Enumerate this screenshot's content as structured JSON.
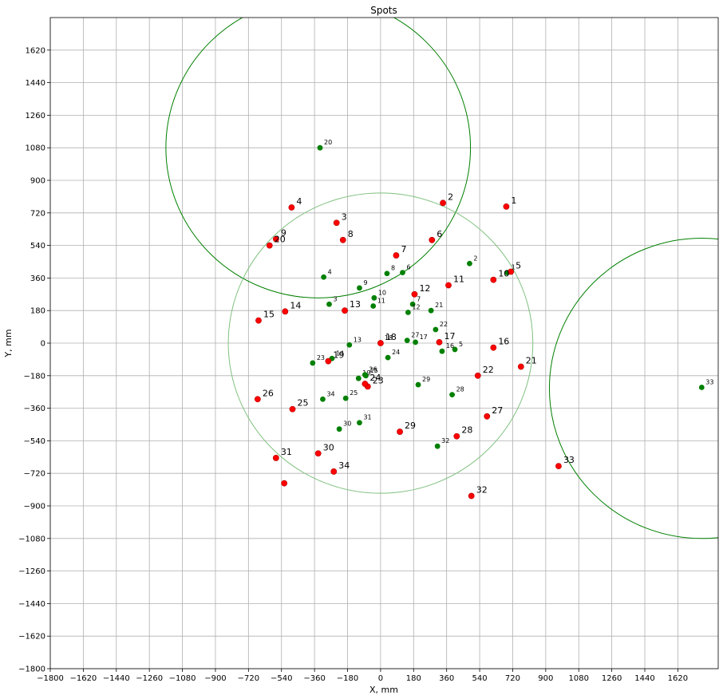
{
  "chart_data": {
    "type": "scatter",
    "title": "Spots",
    "xlabel": "X, mm",
    "ylabel": "Y, mm",
    "xlim": [
      -1800,
      1840
    ],
    "ylim": [
      -1800,
      1800
    ],
    "grid": true,
    "xticks": [
      "−1800",
      "−1620",
      "−1440",
      "−1260",
      "−1080",
      "−900",
      "−720",
      "−540",
      "−360",
      "−180",
      "0",
      "180",
      "360",
      "540",
      "720",
      "900",
      "1080",
      "1260",
      "1440",
      "1620"
    ],
    "xtick_values": [
      -1800,
      -1620,
      -1440,
      -1260,
      -1080,
      -900,
      -720,
      -540,
      -360,
      -180,
      0,
      180,
      360,
      540,
      720,
      900,
      1080,
      1260,
      1440,
      1620
    ],
    "yticks": [
      "−1800",
      "−1620",
      "−1440",
      "−1260",
      "−1080",
      "−900",
      "−720",
      "−540",
      "−360",
      "−180",
      "0",
      "180",
      "360",
      "540",
      "720",
      "900",
      "1080",
      "1260",
      "1440",
      "1620"
    ],
    "ytick_values": [
      -1800,
      -1620,
      -1440,
      -1260,
      -1080,
      -900,
      -720,
      -540,
      -360,
      -180,
      0,
      180,
      360,
      540,
      720,
      900,
      1080,
      1260,
      1440,
      1620
    ],
    "circles": [
      {
        "cx": -340,
        "cy": 1080,
        "r": 830,
        "color": "#008000"
      },
      {
        "cx": 0,
        "cy": 0,
        "r": 830,
        "color": "#80c080"
      },
      {
        "cx": 1750,
        "cy": -250,
        "r": 830,
        "color": "#008000"
      }
    ],
    "series": [
      {
        "color": "#008000",
        "points": [
          {
            "label": "1",
            "x": 690,
            "y": 390
          },
          {
            "label": "2",
            "x": 485,
            "y": 440
          },
          {
            "label": "3",
            "x": -280,
            "y": 215
          },
          {
            "label": "4",
            "x": -310,
            "y": 365
          },
          {
            "label": "5",
            "x": 405,
            "y": -35
          },
          {
            "label": "6",
            "x": 120,
            "y": 390
          },
          {
            "label": "7",
            "x": 175,
            "y": 215
          },
          {
            "label": "8",
            "x": 35,
            "y": 385
          },
          {
            "label": "9",
            "x": -115,
            "y": 305
          },
          {
            "label": "10",
            "x": -35,
            "y": 250
          },
          {
            "label": "11",
            "x": -40,
            "y": 205
          },
          {
            "label": "12",
            "x": 150,
            "y": 170
          },
          {
            "label": "13",
            "x": -170,
            "y": -10
          },
          {
            "label": "14",
            "x": -265,
            "y": -85
          },
          {
            "label": "15",
            "x": -80,
            "y": -180
          },
          {
            "label": "16",
            "x": 335,
            "y": -45
          },
          {
            "label": "17",
            "x": 190,
            "y": 5
          },
          {
            "label": "18",
            "x": 0,
            "y": 0
          },
          {
            "label": "19",
            "x": -120,
            "y": -195
          },
          {
            "label": "20",
            "x": -330,
            "y": 1080
          },
          {
            "label": "21",
            "x": 275,
            "y": 180
          },
          {
            "label": "22",
            "x": 300,
            "y": 75
          },
          {
            "label": "23",
            "x": -370,
            "y": -110
          },
          {
            "label": "24",
            "x": 40,
            "y": -80
          },
          {
            "label": "25",
            "x": -190,
            "y": -305
          },
          {
            "label": "26",
            "x": -85,
            "y": -175
          },
          {
            "label": "27",
            "x": 145,
            "y": 15
          },
          {
            "label": "28",
            "x": 390,
            "y": -285
          },
          {
            "label": "29",
            "x": 205,
            "y": -230
          },
          {
            "label": "30",
            "x": -225,
            "y": -475
          },
          {
            "label": "31",
            "x": -115,
            "y": -440
          },
          {
            "label": "32",
            "x": 310,
            "y": -570
          },
          {
            "label": "33",
            "x": 1750,
            "y": -245
          },
          {
            "label": "34",
            "x": -315,
            "y": -310
          }
        ]
      },
      {
        "color": "#ff0000",
        "points": [
          {
            "label": "1",
            "x": 685,
            "y": 755
          },
          {
            "label": "2",
            "x": 340,
            "y": 775
          },
          {
            "label": "3",
            "x": -240,
            "y": 665
          },
          {
            "label": "4",
            "x": -485,
            "y": 750
          },
          {
            "label": "5",
            "x": 710,
            "y": 395
          },
          {
            "label": "6",
            "x": 280,
            "y": 570
          },
          {
            "label": "7",
            "x": 85,
            "y": 485
          },
          {
            "label": "8",
            "x": -205,
            "y": 570
          },
          {
            "label": "9",
            "x": -570,
            "y": 575
          },
          {
            "label": "10",
            "x": 615,
            "y": 350
          },
          {
            "label": "11",
            "x": 370,
            "y": 320
          },
          {
            "label": "12",
            "x": 185,
            "y": 270
          },
          {
            "label": "13",
            "x": -195,
            "y": 180
          },
          {
            "label": "14",
            "x": -520,
            "y": 175
          },
          {
            "label": "15",
            "x": -665,
            "y": 125
          },
          {
            "label": "16",
            "x": 615,
            "y": -25
          },
          {
            "label": "17",
            "x": 320,
            "y": 5
          },
          {
            "label": "18",
            "x": 0,
            "y": 0
          },
          {
            "label": "19",
            "x": -285,
            "y": -100
          },
          {
            "label": "20",
            "x": -605,
            "y": 540
          },
          {
            "label": "21",
            "x": 765,
            "y": -130
          },
          {
            "label": "22",
            "x": 530,
            "y": -180
          },
          {
            "label": "23",
            "x": -70,
            "y": -240
          },
          {
            "label": "24",
            "x": -85,
            "y": -225
          },
          {
            "label": "25",
            "x": -480,
            "y": -365
          },
          {
            "label": "26",
            "x": -670,
            "y": -310
          },
          {
            "label": "27",
            "x": 580,
            "y": -405
          },
          {
            "label": "28",
            "x": 415,
            "y": -515
          },
          {
            "label": "29",
            "x": 105,
            "y": -490
          },
          {
            "label": "30",
            "x": -340,
            "y": -610
          },
          {
            "label": "31",
            "x": -570,
            "y": -635
          },
          {
            "label": "32",
            "x": 495,
            "y": -845
          },
          {
            "label": "33",
            "x": 970,
            "y": -680
          },
          {
            "label": "34",
            "x": -255,
            "y": -710
          },
          {
            "label": "",
            "x": -525,
            "y": -775
          }
        ]
      }
    ]
  }
}
